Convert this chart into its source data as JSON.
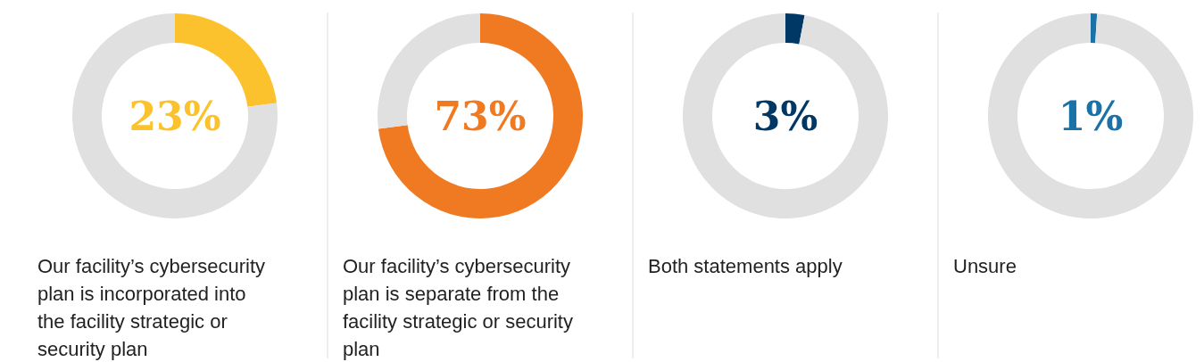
{
  "chart_data": [
    {
      "type": "donut",
      "categories": [
        null,
        null
      ],
      "annotations": [
        "Our facility’s cybersecurity plan is incorporated into the facility strategic or security plan"
      ],
      "values": [
        23,
        77
      ],
      "colors": [
        "#fcc22e",
        "#e0e0e0"
      ],
      "title": "23%"
    },
    {
      "type": "donut",
      "categories": [
        null,
        null
      ],
      "annotations": [
        "Our facility’s cybersecurity plan is separate from the facility strategic or security plan"
      ],
      "values": [
        73,
        27
      ],
      "colors": [
        "#f07a22",
        "#e0e0e0"
      ],
      "title": "73%"
    },
    {
      "type": "donut",
      "categories": [
        null,
        null
      ],
      "annotations": [
        "Both statements apply"
      ],
      "values": [
        3,
        97
      ],
      "colors": [
        "#003865",
        "#e0e0e0"
      ],
      "title": "3%"
    },
    {
      "type": "donut",
      "categories": [
        null,
        null
      ],
      "annotations": [
        "Unsure"
      ],
      "values": [
        1,
        99
      ],
      "colors": [
        "#1a72a8",
        "#e0e0e0"
      ],
      "title": "1%"
    }
  ]
}
